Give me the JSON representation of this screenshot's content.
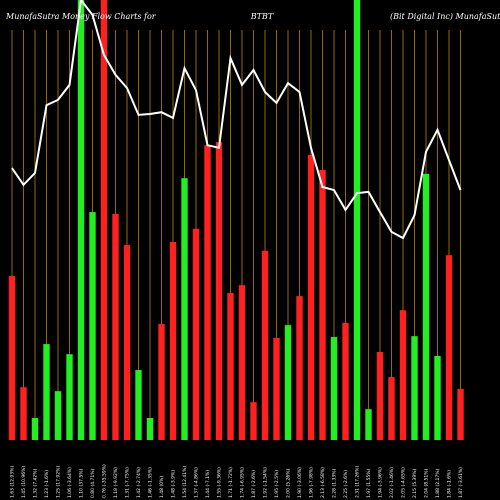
{
  "chart_data": {
    "type": "bar",
    "title": "MunafaSutra  Money Flow  Charts for",
    "symbol": "BTBT",
    "subtitle": "(Bit Digital Inc) MunafaSutra.com",
    "categories": [
      "1.63 (12.93%)",
      "1.45 (10.96%)",
      "1.32 (7.42%)",
      "1.23 (-1.6%)",
      "1.25 (17.92%)",
      "1.06 (-3.64%)",
      "1.10 (37.5%)",
      "0.80 (4.71%)",
      "0.76 (-35.59%)",
      "1.18 (-9.92%)",
      "1.31 (-7.75%)",
      "1.42 (-2.74%)",
      "1.46 (-1.35%)",
      "1.48 (0%)",
      "1.48 (-3.9%)",
      "1.54 (12.41%)",
      "1.37 (-4.86%)",
      "1.44 (-7.1%)",
      "1.55 (-9.36%)",
      "1.71 (-1.72%)",
      "1.74 (-6.95%)",
      "1.87 (-2.6%)",
      "1.92 (-1.54%)",
      "1.95 (-2.5%)",
      "2.00 (5.26%)",
      "1.90 (-3.06%)",
      "1.96 (-7.98%)",
      "2.13 (-6.58%)",
      "2.28 (1.33%)",
      "2.25 (-2.6%)",
      "2.31 (17.26%)",
      "1.97 (1.55%)",
      "1.94 (-3.96%)",
      "2.02 (-1.46%)",
      "2.05 (-4.65%)",
      "2.15 (5.39%)",
      "2.04 (8.51%)",
      "1.88 (2.17%)",
      "1.84 (-1.6%)",
      "1.87 (-3.61%)"
    ],
    "values": [
      37.3,
      12,
      5,
      21.8,
      11.1,
      19.5,
      100,
      51.8,
      100,
      51.4,
      44.3,
      15.9,
      5,
      26.4,
      45,
      59.5,
      48,
      67,
      67.7,
      33.4,
      35.2,
      8.6,
      43,
      23.2,
      26.1,
      32.7,
      64.8,
      61.4,
      23.4,
      26.6,
      100,
      7,
      20,
      14.3,
      29.5,
      23.6,
      60.5,
      19.1,
      42,
      11.6
    ],
    "colors": [
      "#ff2020",
      "#ff2020",
      "#22ee22",
      "#22ee22",
      "#22ee22",
      "#22ee22",
      "#22ee22",
      "#22ee22",
      "#ff2020",
      "#ff2020",
      "#ff2020",
      "#22ee22",
      "#22ee22",
      "#ff2020",
      "#ff2020",
      "#22ee22",
      "#ff2020",
      "#ff2020",
      "#ff2020",
      "#ff2020",
      "#ff2020",
      "#ff2020",
      "#ff2020",
      "#ff2020",
      "#22ee22",
      "#ff2020",
      "#ff2020",
      "#ff2020",
      "#22ee22",
      "#ff2020",
      "#22ee22",
      "#22ee22",
      "#ff2020",
      "#ff2020",
      "#ff2020",
      "#22ee22",
      "#22ee22",
      "#22ee22",
      "#ff2020",
      "#ff2020"
    ],
    "line_values": [
      61.8,
      58,
      60.7,
      76.1,
      77.3,
      80.7,
      100,
      96.6,
      87.5,
      83,
      80,
      73.9,
      74.1,
      74.5,
      73.2,
      84.5,
      79.5,
      67,
      66.4,
      86.8,
      80.7,
      84.1,
      79.1,
      76.6,
      81.1,
      79.1,
      66.4,
      57.5,
      56.8,
      52.3,
      56.1,
      56.4,
      51.8,
      47.3,
      45.9,
      51.1,
      65.5,
      70.5,
      63.6,
      56.8
    ],
    "line_color": "#ffffff",
    "grid_color": "#b8860b",
    "ylim": [
      0,
      100
    ]
  }
}
